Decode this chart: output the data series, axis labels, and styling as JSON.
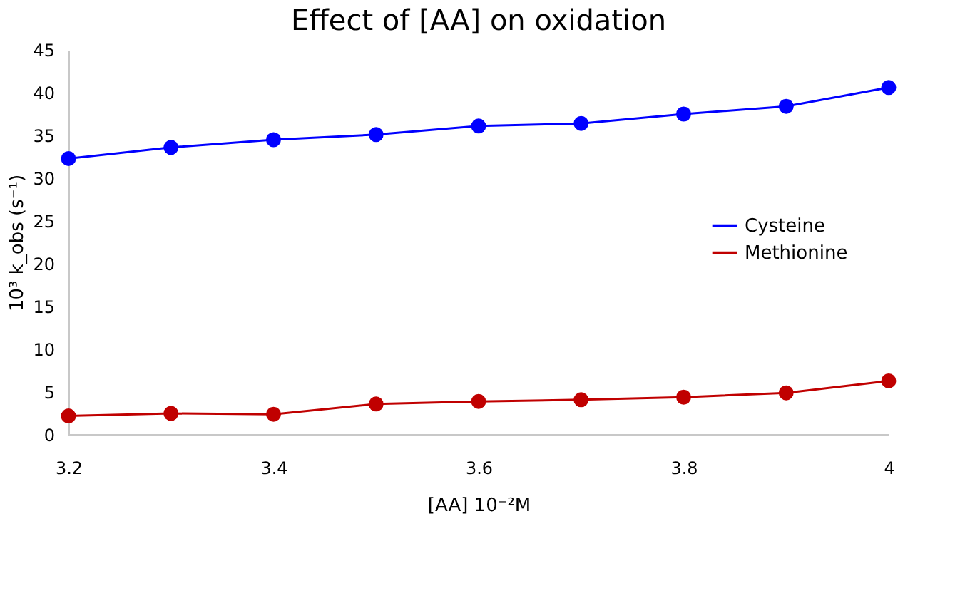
{
  "chart_data": {
    "type": "line",
    "title": "Effect of [AA] on oxidation",
    "xlabel": "[AA] 10⁻²M",
    "ylabel": "10³ k_obs (s⁻¹)",
    "x": [
      3.2,
      3.3,
      3.4,
      3.5,
      3.6,
      3.7,
      3.8,
      3.9,
      4.0
    ],
    "series": [
      {
        "name": "Cysteine",
        "color": "#0000ff",
        "values": [
          32.3,
          33.6,
          34.5,
          35.1,
          36.1,
          36.4,
          37.5,
          38.4,
          40.6
        ]
      },
      {
        "name": "Methionine",
        "color": "#c00000",
        "values": [
          2.2,
          2.5,
          2.4,
          3.6,
          3.9,
          4.1,
          4.4,
          4.9,
          6.3
        ]
      }
    ],
    "xlim": [
      3.2,
      4.0
    ],
    "xticks": [
      3.2,
      3.4,
      3.6,
      3.8,
      4
    ],
    "ylim": [
      0,
      45
    ],
    "yticks": [
      0,
      5,
      10,
      15,
      20,
      25,
      30,
      35,
      40,
      45
    ],
    "grid": false,
    "legend": "right",
    "marker": "circle",
    "line_style": "solid"
  }
}
